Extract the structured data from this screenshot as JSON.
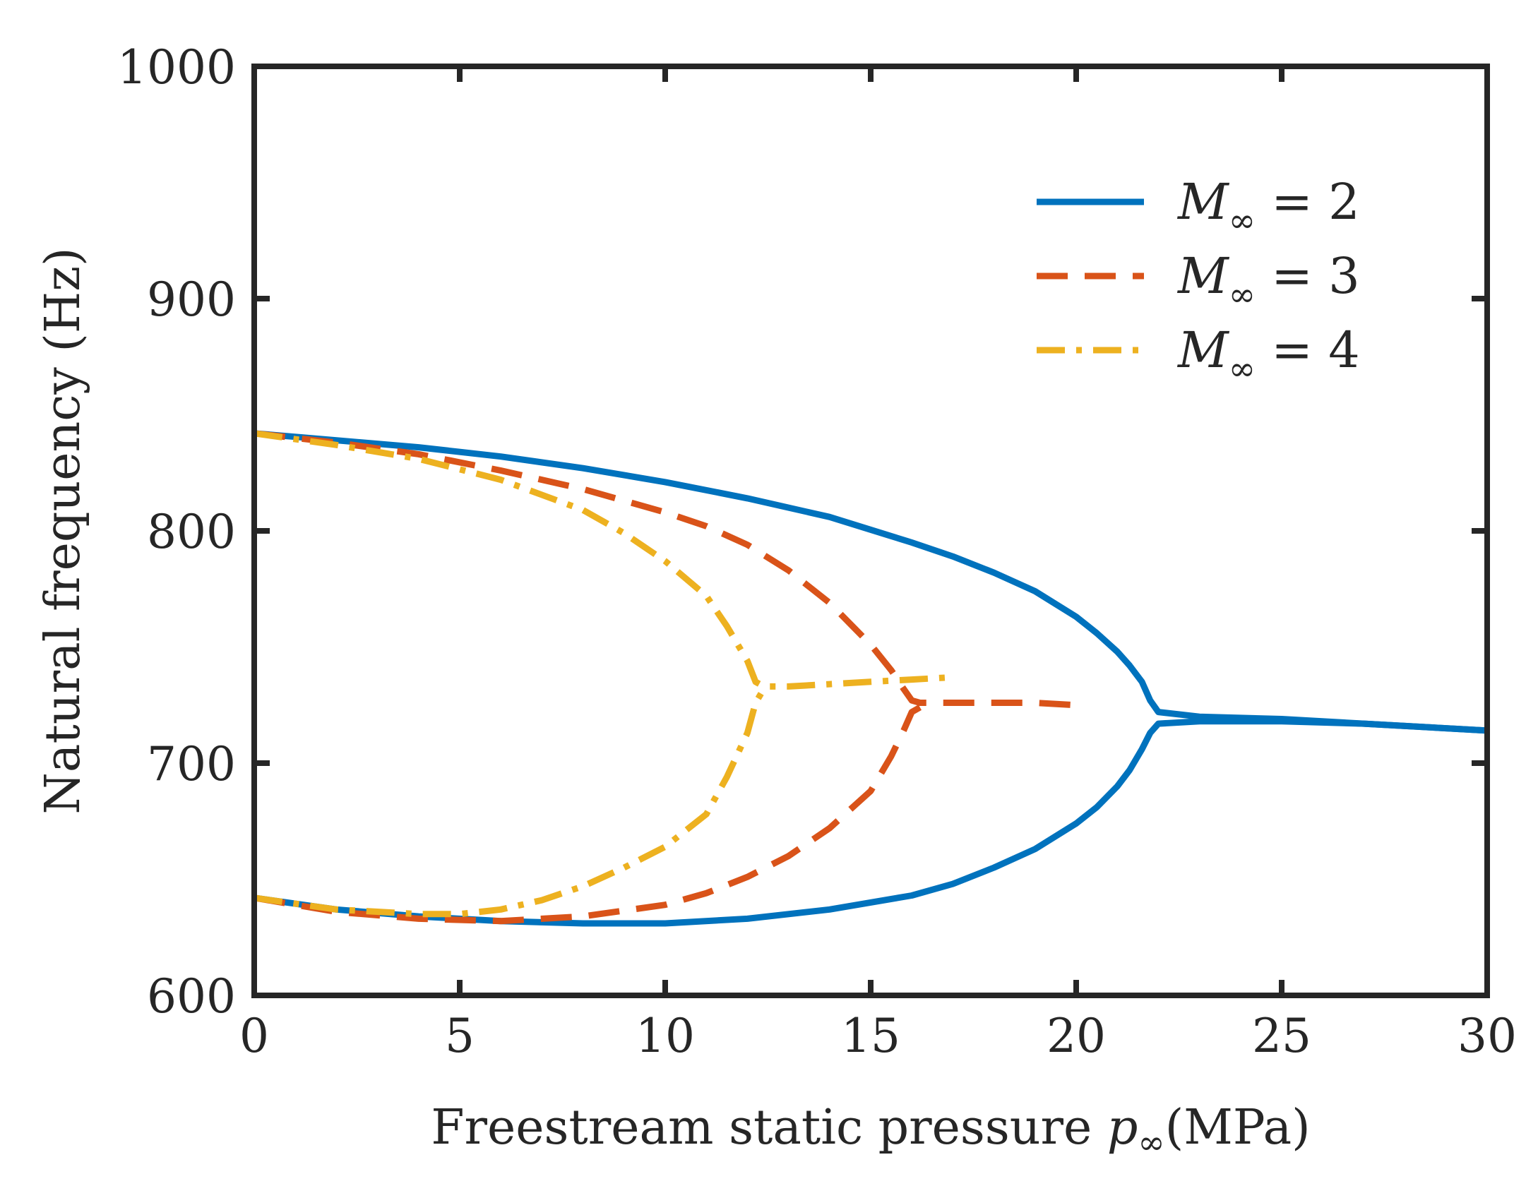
{
  "chart_data": {
    "type": "line",
    "title": "",
    "xlabel": "Freestream static pressure ",
    "xlabel_symbol": "p",
    "xlabel_subscript": "∞",
    "xlabel_unit": "(MPa)",
    "ylabel": "Natural frequency (Hz)",
    "xlim": [
      0,
      30
    ],
    "ylim": [
      600,
      1000
    ],
    "xticks": [
      0,
      5,
      10,
      15,
      20,
      25,
      30
    ],
    "yticks": [
      600,
      700,
      800,
      900,
      1000
    ],
    "grid": false,
    "legend_position": "top-right",
    "series": [
      {
        "name": "M∞ = 2",
        "legend_symbol": "M",
        "legend_sub": "∞",
        "legend_value": " = 2",
        "color": "#0072BD",
        "dash": "solid",
        "branches": [
          {
            "x": [
              0,
              2,
              4,
              6,
              8,
              10,
              12,
              14,
              16,
              17,
              18,
              19,
              20,
              20.5,
              21,
              21.3,
              21.6,
              21.8,
              22,
              23,
              25,
              27,
              30
            ],
            "y": [
              842,
              839,
              836,
              832,
              827,
              821,
              814,
              806,
              795,
              789,
              782,
              774,
              763,
              756,
              748,
              742,
              735,
              727,
              722,
              720,
              719,
              717,
              714
            ]
          },
          {
            "x": [
              0,
              2,
              4,
              6,
              8,
              10,
              12,
              14,
              16,
              17,
              18,
              19,
              20,
              20.5,
              21,
              21.3,
              21.6,
              21.8,
              22,
              23,
              25,
              27,
              30
            ],
            "y": [
              642,
              637,
              634,
              632,
              631,
              631,
              633,
              637,
              643,
              648,
              655,
              663,
              674,
              681,
              690,
              697,
              706,
              713,
              717,
              718,
              718,
              717,
              714
            ]
          }
        ]
      },
      {
        "name": "M∞ = 3",
        "legend_symbol": "M",
        "legend_sub": "∞",
        "legend_value": " = 3",
        "color": "#D95319",
        "dash": "dashed",
        "branches": [
          {
            "x": [
              0,
              2,
              4,
              6,
              8,
              10,
              11,
              12,
              13,
              14,
              15,
              15.5,
              15.8,
              16,
              16.2,
              17,
              18,
              19,
              20
            ],
            "y": [
              842,
              838,
              833,
              826,
              818,
              808,
              802,
              794,
              783,
              769,
              751,
              740,
              732,
              727,
              726,
              726,
              726,
              726,
              725
            ]
          },
          {
            "x": [
              0,
              2,
              4,
              6,
              8,
              10,
              11,
              12,
              13,
              14,
              15,
              15.5,
              15.8,
              16,
              16.2
            ],
            "y": [
              642,
              636,
              633,
              632,
              634,
              639,
              644,
              651,
              660,
              672,
              688,
              703,
              714,
              722,
              724
            ]
          }
        ]
      },
      {
        "name": "M∞ = 4",
        "legend_symbol": "M",
        "legend_sub": "∞",
        "legend_value": " = 4",
        "color": "#EDB120",
        "dash": "dashdot",
        "branches": [
          {
            "x": [
              0,
              2,
              4,
              6,
              8,
              9,
              10,
              11,
              11.5,
              12,
              12.2,
              12.4,
              13,
              14,
              15,
              16,
              17
            ],
            "y": [
              842,
              837,
              831,
              822,
              809,
              799,
              787,
              772,
              759,
              744,
              735,
              733,
              733,
              734,
              735,
              736,
              737
            ]
          },
          {
            "x": [
              0,
              2,
              4,
              5,
              6,
              7,
              8,
              9,
              10,
              11,
              11.5,
              12,
              12.2,
              12.4
            ],
            "y": [
              642,
              637,
              635,
              635,
              637,
              641,
              647,
              655,
              664,
              678,
              694,
              713,
              726,
              732
            ]
          }
        ]
      }
    ]
  }
}
